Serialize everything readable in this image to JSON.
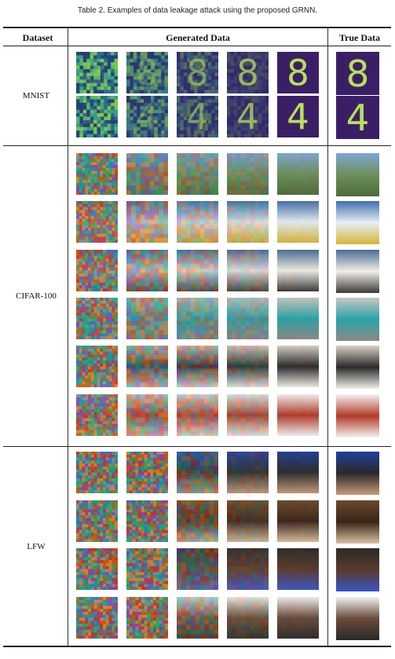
{
  "caption": "Table 2.  Examples of data leakage attack using the proposed GRNN.",
  "headers": {
    "dataset": "Dataset",
    "generated": "Generated Data",
    "true": "True Data"
  },
  "datasets": [
    {
      "label": "MNIST"
    },
    {
      "label": "CIFAR-100"
    },
    {
      "label": "LFW"
    }
  ],
  "mnist_digits": [
    "8",
    "4"
  ],
  "colors": {
    "mnist_bg": "#3b1f66",
    "mnist_digit": "#b8e05a",
    "mnist_noise": "#3aa38a"
  }
}
